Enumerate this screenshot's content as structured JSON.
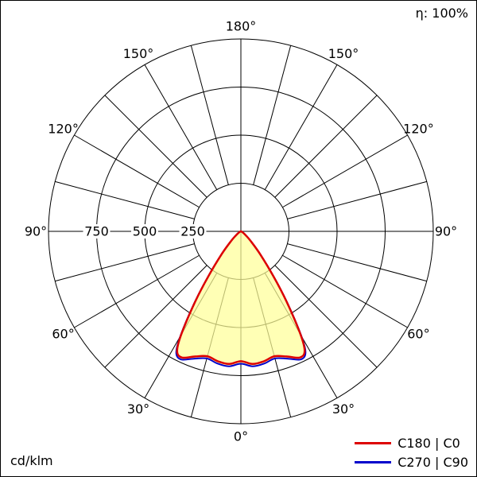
{
  "header": {
    "efficiency": "η: 100%"
  },
  "footer": {
    "unit": "cd/klm"
  },
  "legend": {
    "items": [
      {
        "label": "C180 | C0",
        "color": "#dd0000"
      },
      {
        "label": "C270 | C90",
        "color": "#0000cc"
      }
    ]
  },
  "chart_data": {
    "type": "polar",
    "unit": "cd/klm",
    "efficiency_percent": 100,
    "radial_ticks": [
      250,
      500,
      750
    ],
    "radial_max": 1000,
    "spoke_step_deg": 15,
    "grid_color": "#000000",
    "fill_color": "#ffff99",
    "angle_labels": [
      {
        "text": "0°",
        "theta": 0
      },
      {
        "text": "30°",
        "theta": 30
      },
      {
        "text": "30°",
        "theta": -30
      },
      {
        "text": "60°",
        "theta": 60
      },
      {
        "text": "60°",
        "theta": -60
      },
      {
        "text": "90°",
        "theta": 90
      },
      {
        "text": "90°",
        "theta": -90
      },
      {
        "text": "120°",
        "theta": 120
      },
      {
        "text": "120°",
        "theta": -120
      },
      {
        "text": "150°",
        "theta": 150
      },
      {
        "text": "150°",
        "theta": -150
      },
      {
        "text": "180°",
        "theta": 180
      }
    ],
    "series": [
      {
        "name": "C270 | C90",
        "color": "#0000cc",
        "width": 2,
        "angles_deg": [
          0,
          5,
          10,
          15,
          20,
          25,
          28,
          30,
          33,
          36,
          40,
          45,
          50,
          55,
          60,
          70,
          80,
          90
        ],
        "values_cd_per_klm": [
          688,
          704,
          698,
          684,
          704,
          735,
          716,
          630,
          442,
          287,
          159,
          75,
          38,
          19,
          10,
          4,
          2,
          1
        ]
      },
      {
        "name": "C180 | C0",
        "color": "#dd0000",
        "width": 2.5,
        "angles_deg": [
          0,
          5,
          10,
          15,
          20,
          25,
          28,
          30,
          33,
          36,
          40,
          45,
          50,
          55,
          60,
          70,
          80,
          90
        ],
        "values_cd_per_klm": [
          675,
          692,
          686,
          672,
          692,
          724,
          706,
          622,
          438,
          285,
          158,
          75,
          38,
          19,
          10,
          4,
          2,
          1
        ]
      }
    ],
    "layout": {
      "center": [
        302,
        290
      ],
      "outer_radius": 242,
      "label_radius": 258,
      "legend_position": "bottom-right",
      "grid": true
    }
  }
}
